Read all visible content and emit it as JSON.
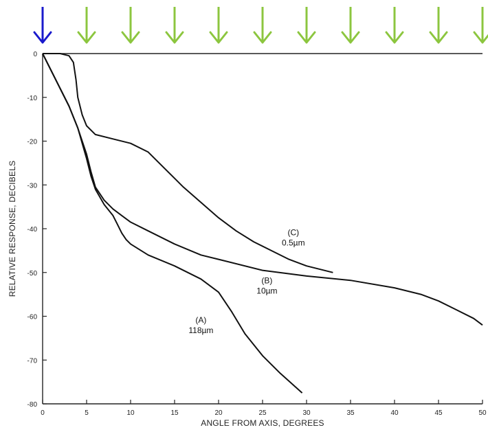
{
  "arrows": {
    "highlight_color": "#1a1acc",
    "color": "#8cc63f",
    "icon": "down-arrow",
    "highlight_index": 0
  },
  "chart_data": {
    "type": "line",
    "title": "",
    "xlabel": "ANGLE FROM AXIS, DEGREES",
    "ylabel": "RELATIVE RESPONSE, DECIBELS",
    "xlim": [
      0,
      50
    ],
    "ylim": [
      -80,
      0
    ],
    "xticks": [
      "0",
      "5",
      "10",
      "15",
      "20",
      "25",
      "30",
      "35",
      "40",
      "45",
      "50"
    ],
    "yticks": [
      "0",
      "-10",
      "-20",
      "-30",
      "-40",
      "-50",
      "-60",
      "-70",
      "-80"
    ],
    "grid": false,
    "series": [
      {
        "name": "(A)",
        "sublabel": "118µm",
        "x": [
          0,
          1,
          2,
          3,
          4,
          5,
          5.5,
          6,
          7,
          8,
          8.5,
          9,
          9.5,
          10,
          12,
          15,
          18,
          20,
          21.5,
          23,
          25,
          27,
          29.5
        ],
        "y": [
          0,
          -4,
          -8,
          -12,
          -17,
          -24,
          -28,
          -31,
          -34.5,
          -37,
          -39,
          -41,
          -42.5,
          -43.5,
          -46,
          -48.5,
          -51.5,
          -54.5,
          -59,
          -64,
          -69,
          -73,
          -77.5
        ]
      },
      {
        "name": "(B)",
        "sublabel": "10µm",
        "x": [
          0,
          1,
          2,
          3,
          4,
          5,
          5.5,
          6,
          7,
          8,
          9,
          10,
          12,
          15,
          18,
          20,
          25,
          30,
          35,
          40,
          43,
          45,
          47,
          49,
          50
        ],
        "y": [
          0,
          -4,
          -8,
          -12,
          -17,
          -23,
          -27,
          -30.5,
          -33.5,
          -35.5,
          -37,
          -38.5,
          -40.5,
          -43.5,
          -46,
          -47,
          -49.5,
          -50.8,
          -51.8,
          -53.5,
          -55,
          -56.5,
          -58.5,
          -60.5,
          -62
        ]
      },
      {
        "name": "(C)",
        "sublabel": "0.5µm",
        "x": [
          0,
          1,
          2,
          3,
          3.5,
          3.8,
          4,
          4.5,
          5,
          6,
          8,
          10,
          12,
          14,
          16,
          18,
          20,
          22,
          24,
          26,
          28,
          30,
          33
        ],
        "y": [
          0,
          0,
          0,
          -0.5,
          -2,
          -6,
          -10,
          -14,
          -16.5,
          -18.5,
          -19.5,
          -20.5,
          -22.5,
          -26.5,
          -30.5,
          -34,
          -37.5,
          -40.5,
          -43,
          -45,
          -47,
          -48.5,
          -50
        ]
      }
    ]
  }
}
